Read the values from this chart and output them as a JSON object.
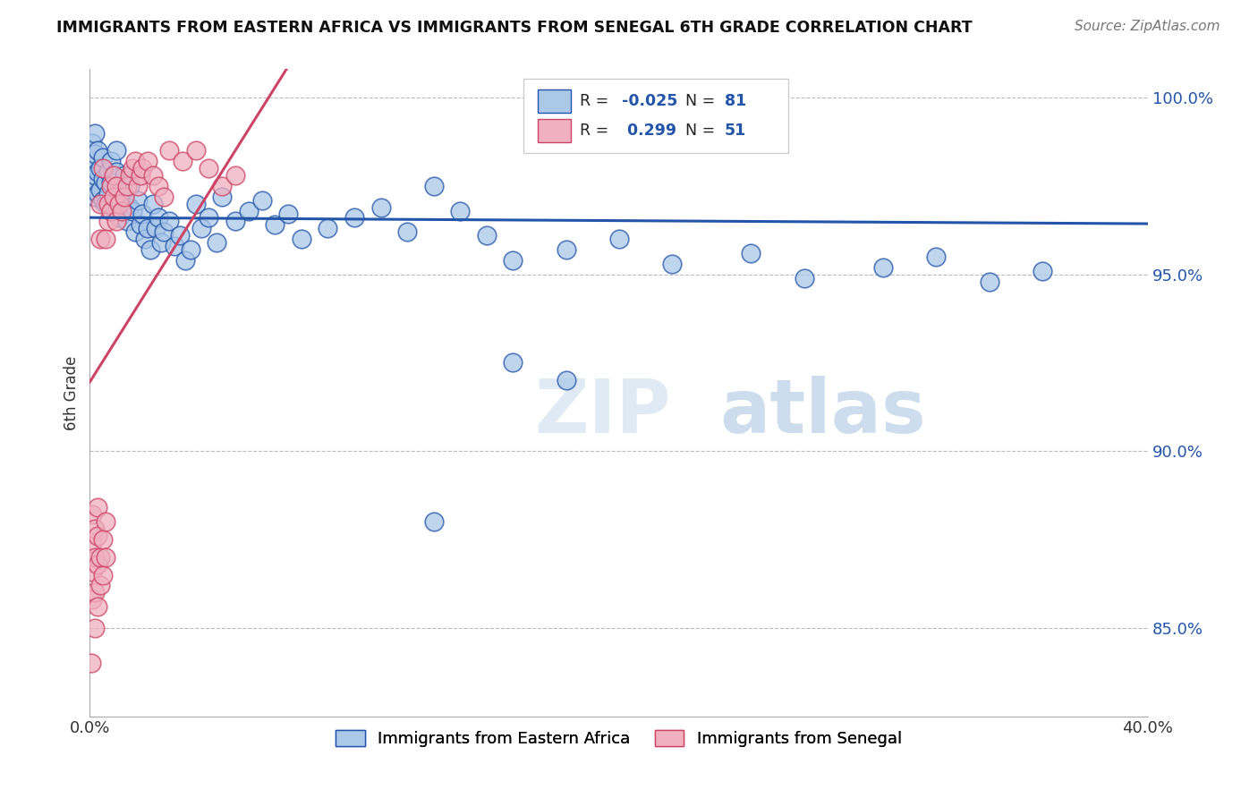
{
  "title": "IMMIGRANTS FROM EASTERN AFRICA VS IMMIGRANTS FROM SENEGAL 6TH GRADE CORRELATION CHART",
  "source": "Source: ZipAtlas.com",
  "ylabel": "6th Grade",
  "legend_blue_label": "Immigrants from Eastern Africa",
  "legend_pink_label": "Immigrants from Senegal",
  "blue_color": "#aac8e8",
  "pink_color": "#f0b0c0",
  "blue_line_color": "#2255aa",
  "pink_line_color": "#cc4466",
  "blue_R": -0.025,
  "blue_N": 81,
  "pink_R": 0.299,
  "pink_N": 51,
  "xlim": [
    0.0,
    0.4
  ],
  "ylim": [
    0.825,
    1.008
  ],
  "yticks": [
    0.85,
    0.9,
    0.95,
    1.0
  ],
  "ytick_labels": [
    "85.0%",
    "90.0%",
    "95.0%",
    "100.0%"
  ],
  "xticks": [
    0.0,
    0.1,
    0.2,
    0.3,
    0.4
  ],
  "xtick_labels": [
    "0.0%",
    "",
    "",
    "",
    "40.0%"
  ],
  "background_color": "#ffffff",
  "grid_color": "#bbbbbb",
  "watermark_zip": "ZIP",
  "watermark_atlas": "atlas",
  "blue_scatter_x": [
    0.001,
    0.001,
    0.001,
    0.002,
    0.002,
    0.002,
    0.002,
    0.003,
    0.003,
    0.003,
    0.004,
    0.004,
    0.005,
    0.005,
    0.005,
    0.006,
    0.006,
    0.007,
    0.007,
    0.008,
    0.008,
    0.009,
    0.01,
    0.01,
    0.011,
    0.011,
    0.012,
    0.013,
    0.013,
    0.014,
    0.015,
    0.015,
    0.016,
    0.017,
    0.018,
    0.019,
    0.02,
    0.021,
    0.022,
    0.023,
    0.024,
    0.025,
    0.026,
    0.027,
    0.028,
    0.03,
    0.032,
    0.034,
    0.036,
    0.038,
    0.04,
    0.042,
    0.045,
    0.048,
    0.05,
    0.055,
    0.06,
    0.065,
    0.07,
    0.075,
    0.08,
    0.09,
    0.1,
    0.11,
    0.12,
    0.13,
    0.14,
    0.15,
    0.16,
    0.18,
    0.2,
    0.22,
    0.25,
    0.27,
    0.3,
    0.32,
    0.34,
    0.36,
    0.16,
    0.18,
    0.13
  ],
  "blue_scatter_y": [
    0.987,
    0.982,
    0.976,
    0.99,
    0.984,
    0.978,
    0.972,
    0.985,
    0.979,
    0.973,
    0.98,
    0.974,
    0.983,
    0.977,
    0.971,
    0.976,
    0.97,
    0.979,
    0.973,
    0.982,
    0.976,
    0.969,
    0.985,
    0.979,
    0.972,
    0.966,
    0.975,
    0.978,
    0.972,
    0.965,
    0.975,
    0.969,
    0.968,
    0.962,
    0.971,
    0.964,
    0.967,
    0.96,
    0.963,
    0.957,
    0.97,
    0.963,
    0.966,
    0.959,
    0.962,
    0.965,
    0.958,
    0.961,
    0.954,
    0.957,
    0.97,
    0.963,
    0.966,
    0.959,
    0.972,
    0.965,
    0.968,
    0.971,
    0.964,
    0.967,
    0.96,
    0.963,
    0.966,
    0.969,
    0.962,
    0.975,
    0.968,
    0.961,
    0.954,
    0.957,
    0.96,
    0.953,
    0.956,
    0.949,
    0.952,
    0.955,
    0.948,
    0.951,
    0.925,
    0.92,
    0.88
  ],
  "pink_scatter_x": [
    0.0005,
    0.001,
    0.001,
    0.001,
    0.001,
    0.002,
    0.002,
    0.002,
    0.002,
    0.003,
    0.003,
    0.003,
    0.003,
    0.004,
    0.004,
    0.004,
    0.004,
    0.005,
    0.005,
    0.005,
    0.006,
    0.006,
    0.006,
    0.007,
    0.007,
    0.008,
    0.008,
    0.009,
    0.009,
    0.01,
    0.01,
    0.011,
    0.012,
    0.013,
    0.014,
    0.015,
    0.016,
    0.017,
    0.018,
    0.019,
    0.02,
    0.022,
    0.024,
    0.026,
    0.028,
    0.03,
    0.035,
    0.04,
    0.045,
    0.05,
    0.055
  ],
  "pink_scatter_y": [
    0.84,
    0.858,
    0.866,
    0.874,
    0.882,
    0.85,
    0.86,
    0.87,
    0.878,
    0.856,
    0.868,
    0.876,
    0.884,
    0.862,
    0.87,
    0.96,
    0.97,
    0.865,
    0.875,
    0.98,
    0.87,
    0.88,
    0.96,
    0.965,
    0.97,
    0.968,
    0.975,
    0.972,
    0.978,
    0.965,
    0.975,
    0.97,
    0.968,
    0.972,
    0.975,
    0.978,
    0.98,
    0.982,
    0.975,
    0.978,
    0.98,
    0.982,
    0.978,
    0.975,
    0.972,
    0.985,
    0.982,
    0.985,
    0.98,
    0.975,
    0.978
  ]
}
